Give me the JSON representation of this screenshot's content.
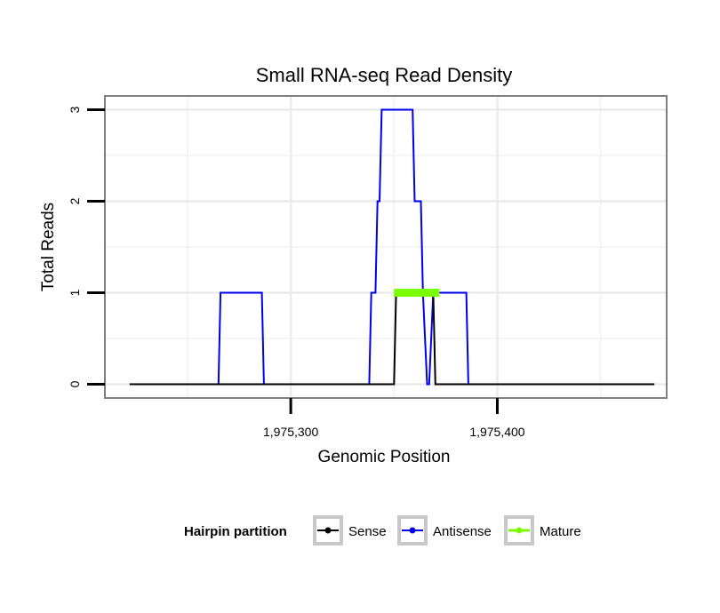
{
  "chart_data": {
    "type": "line",
    "title": "Small RNA-seq Read Density",
    "xlabel": "Genomic Position",
    "ylabel": "Total Reads",
    "xlim": [
      1975210,
      1975482
    ],
    "ylim": [
      -0.15,
      3.15
    ],
    "x_ticks": [
      {
        "value": 1975300,
        "label": "1,975,300"
      },
      {
        "value": 1975400,
        "label": "1,975,400"
      }
    ],
    "x_minor_ticks": [
      1975250,
      1975350,
      1975450
    ],
    "y_ticks": [
      {
        "value": 0,
        "label": "0"
      },
      {
        "value": 1,
        "label": "1"
      },
      {
        "value": 2,
        "label": "2"
      },
      {
        "value": 3,
        "label": "3"
      }
    ],
    "y_minor_ticks": [
      0.5,
      1.5,
      2.5
    ],
    "grid": true,
    "legend_position": "bottom",
    "legend_title": "Hairpin partition",
    "series": [
      {
        "name": "Antisense",
        "color": "#0000ee",
        "width": 2,
        "x": [
          1975222,
          1975265,
          1975266,
          1975286,
          1975287,
          1975338,
          1975339,
          1975341,
          1975342,
          1975343,
          1975344,
          1975346,
          1975347,
          1975359,
          1975360,
          1975363,
          1975364,
          1975366,
          1975367,
          1975369,
          1975370,
          1975385,
          1975386,
          1975476
        ],
        "values": [
          0,
          0,
          1,
          1,
          0,
          0,
          1,
          1,
          2,
          2,
          3,
          3,
          3,
          3,
          2,
          2,
          1,
          0,
          0,
          1,
          1,
          1,
          0,
          0
        ]
      },
      {
        "name": "Sense",
        "color": "#000000",
        "width": 2,
        "x": [
          1975222,
          1975350,
          1975351,
          1975369,
          1975370,
          1975476
        ],
        "values": [
          0,
          0,
          1,
          1,
          0,
          0
        ]
      },
      {
        "name": "Mature",
        "color": "#7cfc00",
        "width": 9,
        "x": [
          1975350,
          1975372
        ],
        "values": [
          1,
          1
        ]
      }
    ]
  }
}
